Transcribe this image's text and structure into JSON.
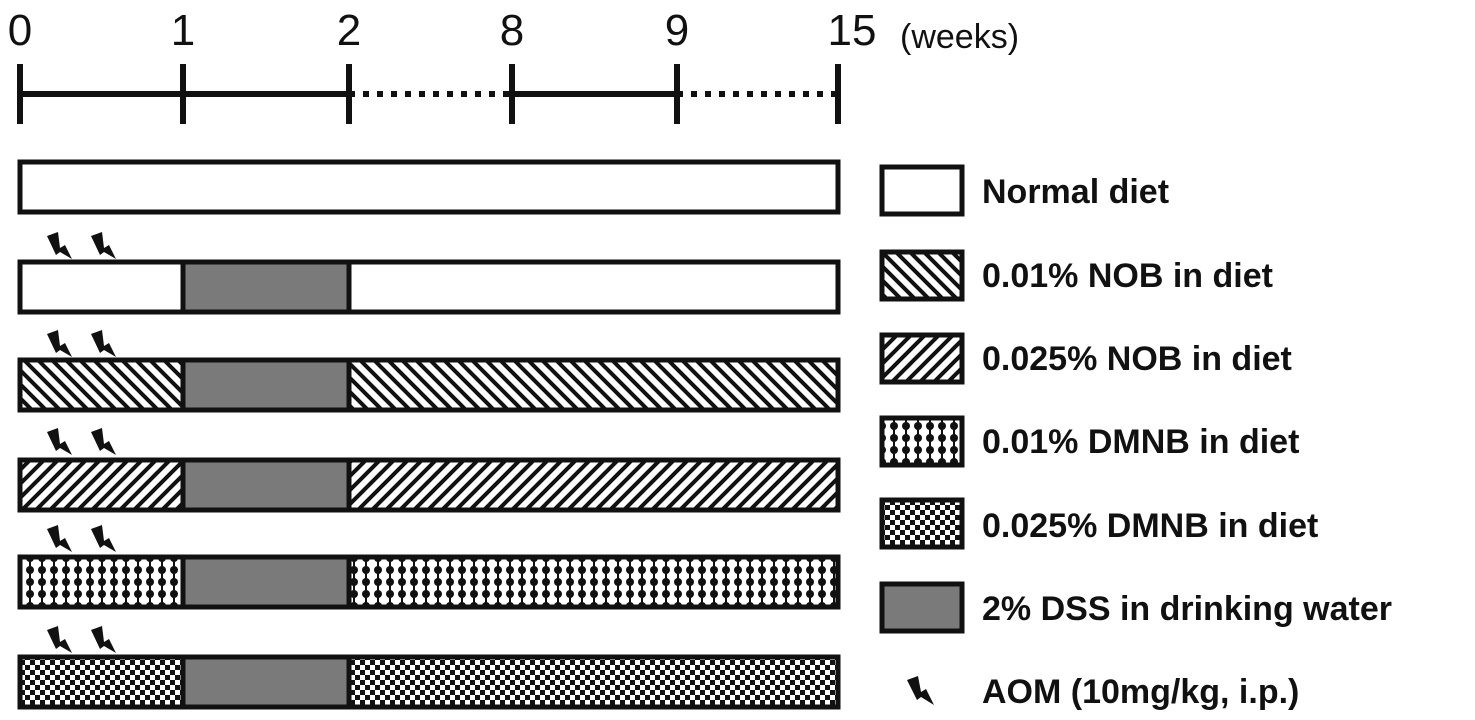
{
  "timeline": {
    "ticks": [
      {
        "label": "0",
        "week": 0
      },
      {
        "label": "1",
        "week": 1
      },
      {
        "label": "2",
        "week": 2
      },
      {
        "label": "8",
        "week": 8
      },
      {
        "label": "9",
        "week": 9
      },
      {
        "label": "15",
        "week": 15
      }
    ],
    "unit_label": "(weeks)"
  },
  "groups": [
    {
      "diet": "normal",
      "dss": false,
      "aom": false
    },
    {
      "diet": "normal",
      "dss": true,
      "aom": true
    },
    {
      "diet": "nob-001",
      "dss": true,
      "aom": true
    },
    {
      "diet": "nob-0025",
      "dss": true,
      "aom": true
    },
    {
      "diet": "dmnb-001",
      "dss": true,
      "aom": true
    },
    {
      "diet": "dmnb-0025",
      "dss": true,
      "aom": true
    }
  ],
  "legend": {
    "normal": "Normal diet",
    "nob_001": "0.01% NOB in diet",
    "nob_0025": "0.025% NOB in diet",
    "dmnb_001": "0.01% DMNB in diet",
    "dmnb_0025": "0.025% DMNB in diet",
    "dss": "2% DSS in drinking water",
    "aom": "AOM (10mg/kg, i.p.)"
  },
  "colors": {
    "stroke": "#111111",
    "dss_fill": "#7a7a7a",
    "background": "#ffffff"
  }
}
